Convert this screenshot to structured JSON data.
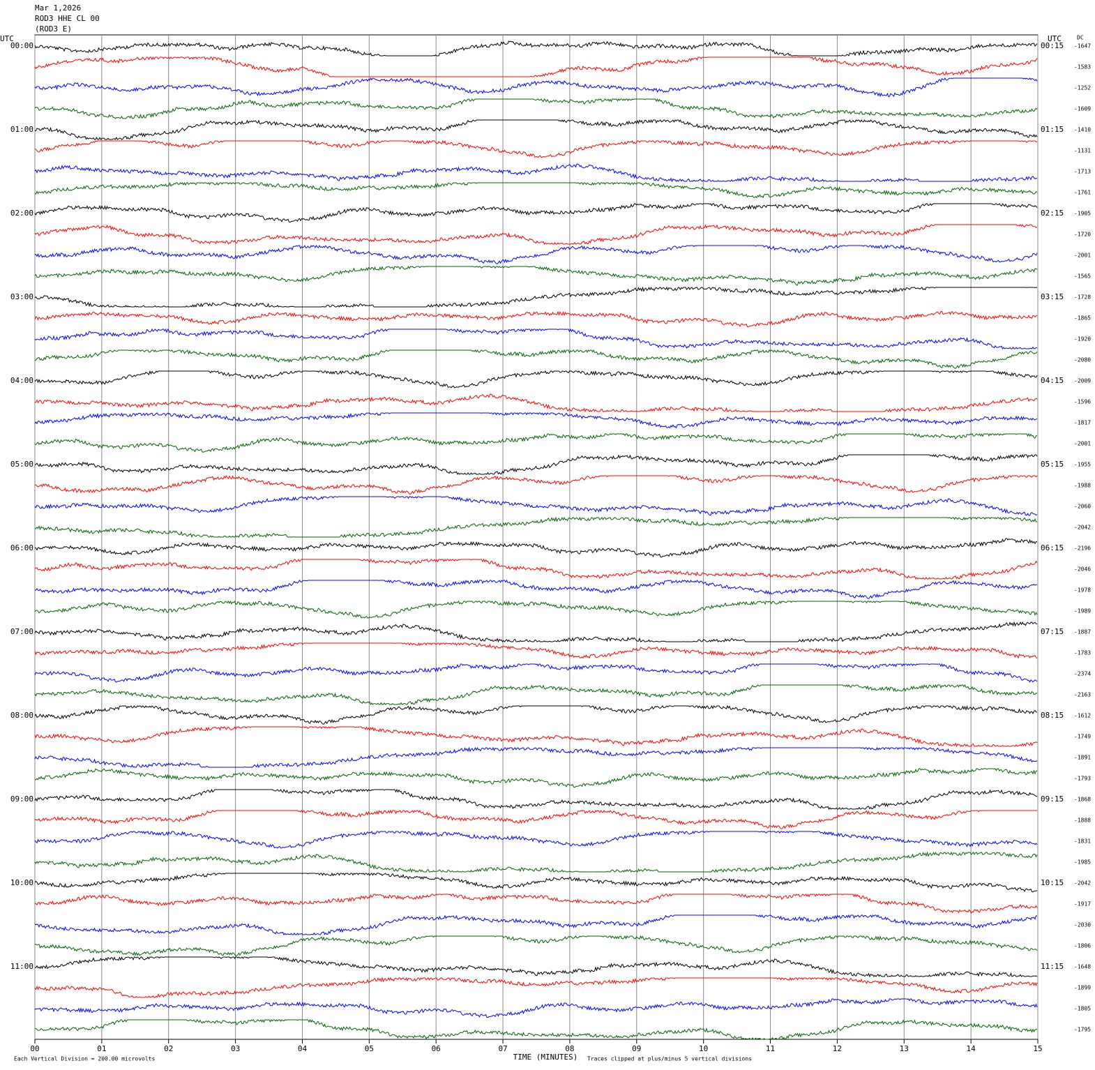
{
  "chart_data": {
    "type": "helicorder",
    "header": [
      "Mar 1,2026",
      "ROD3 HHE CL 00",
      "(ROD3 E)"
    ],
    "left_axis_title": "UTC",
    "right_axis_title": "UTC",
    "dc_title": "DC",
    "left_labels": [
      "00:00",
      "01:00",
      "02:00",
      "03:00",
      "04:00",
      "05:00",
      "06:00",
      "07:00",
      "08:00",
      "09:00",
      "10:00",
      "11:00"
    ],
    "right_labels": [
      "00:15",
      "01:15",
      "02:15",
      "03:15",
      "04:15",
      "05:15",
      "06:15",
      "07:15",
      "08:15",
      "09:15",
      "10:15",
      "11:15"
    ],
    "dc_offsets": [
      -1647,
      -1583,
      -1252,
      -1609,
      -1410,
      -1131,
      -1713,
      -1761,
      -1905,
      -1720,
      -2001,
      -1565,
      -1728,
      -1865,
      -1920,
      -2080,
      -2009,
      -1596,
      -1817,
      -2001,
      -1955,
      -1988,
      -2060,
      -2042,
      -2196,
      -2046,
      -1978,
      -1989,
      -1887,
      -1783,
      -2374,
      -2163,
      -1612,
      -1749,
      -1891,
      -1793,
      -1868,
      -1888,
      -1831,
      -1985,
      -2042,
      -1917,
      -2030,
      -1806,
      -1648,
      -1899,
      -1805,
      -1795
    ],
    "trace_colors": [
      "#000000",
      "#ff0000",
      "#0000ff",
      "#006400"
    ],
    "xlim": [
      0,
      15
    ],
    "xticks": [
      {
        "value": 0,
        "label": "00"
      },
      {
        "value": 1,
        "label": "01"
      },
      {
        "value": 2,
        "label": "02"
      },
      {
        "value": 3,
        "label": "03"
      },
      {
        "value": 4,
        "label": "04"
      },
      {
        "value": 5,
        "label": "05"
      },
      {
        "value": 6,
        "label": "06"
      },
      {
        "value": 7,
        "label": "07"
      },
      {
        "value": 8,
        "label": "08"
      },
      {
        "value": 9,
        "label": "09"
      },
      {
        "value": 10,
        "label": "10"
      },
      {
        "value": 11,
        "label": "11"
      },
      {
        "value": 12,
        "label": "12"
      },
      {
        "value": 13,
        "label": "13"
      },
      {
        "value": 14,
        "label": "14"
      },
      {
        "value": 15,
        "label": "15"
      }
    ],
    "xlabel": "TIME (MINUTES)",
    "scale_note": "Each Vertical Division =  200.00 microvolts",
    "clip_note": "Traces clipped at plus/minus 5 vertical divisions",
    "grid": true
  }
}
